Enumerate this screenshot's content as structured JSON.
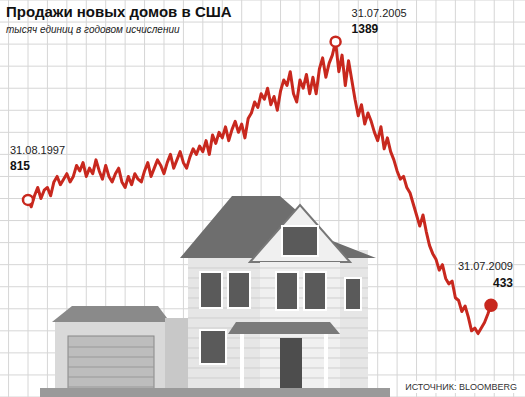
{
  "chart_data": {
    "type": "line",
    "title": "Продажи новых домов в США",
    "subtitle": "тысяч единиц в годовом исчислении",
    "source": "ИСТОЧНИК: BLOOMBERG",
    "categories": [
      "31.08.1997",
      null,
      null,
      null,
      null,
      null,
      null,
      null,
      null,
      null,
      null,
      null,
      null,
      null,
      null,
      null,
      null,
      null,
      null,
      null,
      null,
      null,
      null,
      null,
      null,
      null,
      null,
      null,
      null,
      null,
      null,
      null,
      null,
      null,
      null,
      null,
      null,
      null,
      null,
      null,
      null,
      null,
      null,
      null,
      null,
      null,
      null,
      null,
      null,
      null,
      null,
      null,
      null,
      null,
      null,
      null,
      null,
      null,
      null,
      null,
      null,
      null,
      null,
      null,
      null,
      null,
      null,
      null,
      null,
      null,
      null,
      null,
      null,
      null,
      null,
      null,
      null,
      null,
      null,
      null,
      null,
      null,
      null,
      null,
      null,
      null,
      null,
      null,
      null,
      null,
      null,
      null,
      null,
      null,
      null,
      "31.07.2005",
      null,
      null,
      null,
      null,
      null,
      null,
      null,
      null,
      null,
      null,
      null,
      null,
      null,
      null,
      null,
      null,
      null,
      null,
      null,
      null,
      null,
      null,
      null,
      null,
      null,
      null,
      null,
      null,
      null,
      null,
      null,
      null,
      null,
      null,
      null,
      null,
      null,
      null,
      null,
      null,
      null,
      null,
      null,
      null,
      null,
      null,
      null,
      "31.07.2009"
    ],
    "values": [
      815,
      790,
      830,
      860,
      820,
      850,
      860,
      830,
      880,
      900,
      870,
      890,
      910,
      880,
      900,
      940,
      920,
      950,
      900,
      930,
      910,
      960,
      920,
      890,
      940,
      900,
      880,
      910,
      930,
      880,
      860,
      900,
      870,
      910,
      890,
      880,
      920,
      950,
      900,
      930,
      960,
      940,
      910,
      950,
      980,
      930,
      960,
      990,
      950,
      930,
      970,
      1000,
      980,
      1010,
      990,
      1030,
      980,
      1050,
      1020,
      1060,
      1040,
      1080,
      1030,
      1070,
      1100,
      1060,
      1090,
      1040,
      1110,
      1130,
      1170,
      1150,
      1200,
      1180,
      1220,
      1160,
      1190,
      1140,
      1210,
      1250,
      1230,
      1280,
      1200,
      1170,
      1250,
      1220,
      1270,
      1200,
      1260,
      1200,
      1290,
      1330,
      1260,
      1310,
      1340,
      1389,
      1280,
      1340,
      1230,
      1320,
      1250,
      1180,
      1120,
      1160,
      1090,
      1130,
      1100,
      1060,
      1030,
      1080,
      1000,
      1040,
      990,
      960,
      920,
      890,
      900,
      860,
      840,
      800,
      760,
      720,
      760,
      700,
      650,
      620,
      600,
      560,
      580,
      530,
      510,
      520,
      460,
      450,
      410,
      430,
      390,
      340,
      350,
      330,
      350,
      370,
      400,
      433
    ],
    "value_labels": [
      "815",
      null,
      null,
      null,
      null,
      null,
      null,
      null,
      null,
      null,
      null,
      null,
      null,
      null,
      null,
      null,
      null,
      null,
      null,
      null,
      null,
      null,
      null,
      null,
      null,
      null,
      null,
      null,
      null,
      null,
      null,
      null,
      null,
      null,
      null,
      null,
      null,
      null,
      null,
      null,
      null,
      null,
      null,
      null,
      null,
      null,
      null,
      null,
      null,
      null,
      null,
      null,
      null,
      null,
      null,
      null,
      null,
      null,
      null,
      null,
      null,
      null,
      null,
      null,
      null,
      null,
      null,
      null,
      null,
      null,
      null,
      null,
      null,
      null,
      null,
      null,
      null,
      null,
      null,
      null,
      null,
      null,
      null,
      null,
      null,
      null,
      null,
      null,
      null,
      null,
      null,
      null,
      null,
      null,
      null,
      "1389",
      null,
      null,
      null,
      null,
      null,
      null,
      null,
      null,
      null,
      null,
      null,
      null,
      null,
      null,
      null,
      null,
      null,
      null,
      null,
      null,
      null,
      null,
      null,
      null,
      null,
      null,
      null,
      null,
      null,
      null,
      null,
      null,
      null,
      null,
      null,
      null,
      null,
      null,
      null,
      null,
      null,
      null,
      null,
      null,
      null,
      null,
      null,
      "433"
    ],
    "data_labels": true,
    "color": "#c8281e",
    "marker": "circle",
    "line_style": "solid",
    "ylim": [
      100,
      1540
    ],
    "yticks": [
      100,
      180,
      260,
      340,
      420,
      500,
      580,
      660,
      740,
      820,
      900,
      980,
      1060,
      1140,
      1220,
      1300,
      1380,
      1460,
      1540
    ],
    "grid": true,
    "tick_labels": false
  }
}
